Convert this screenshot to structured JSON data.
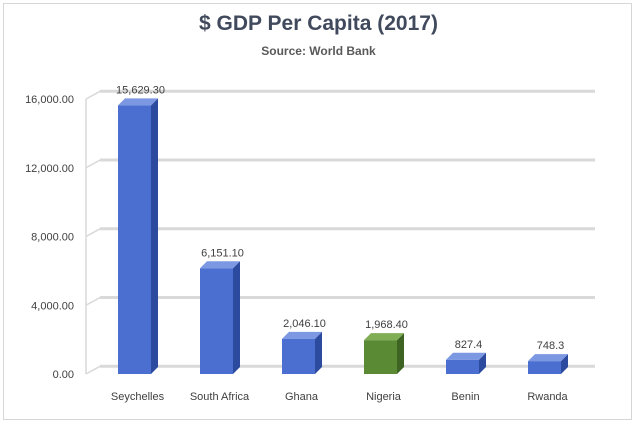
{
  "chart_data": {
    "type": "bar",
    "title": "$ GDP Per Capita (2017)",
    "subtitle": "Source: World Bank",
    "categories": [
      "Seychelles",
      "South Africa",
      "Ghana",
      "Nigeria",
      "Benin",
      "Rwanda"
    ],
    "values": [
      15629.3,
      6151.1,
      2046.1,
      1968.4,
      827.4,
      748.3
    ],
    "value_labels": [
      "15,629.30",
      "6,151.10",
      "2,046.10",
      "1,968.40",
      "827.4",
      "748.3"
    ],
    "highlight_category": "Nigeria",
    "ylim": [
      0,
      16000
    ],
    "yticks": [
      0,
      4000,
      8000,
      12000,
      16000
    ],
    "ytick_labels": [
      "0.00",
      "4,000.00",
      "8,000.00",
      "12,000.00",
      "16,000.00"
    ],
    "xlabel": "",
    "ylabel": "",
    "grid": true,
    "colors": {
      "bar_front": "#4a6fd0",
      "bar_side": "#2c4a9e",
      "bar_top": "#7c98e3",
      "highlight_front": "#5a8a34",
      "highlight_side": "#3d6423",
      "highlight_top": "#7fae55",
      "grid": "#d9d9d9"
    }
  }
}
